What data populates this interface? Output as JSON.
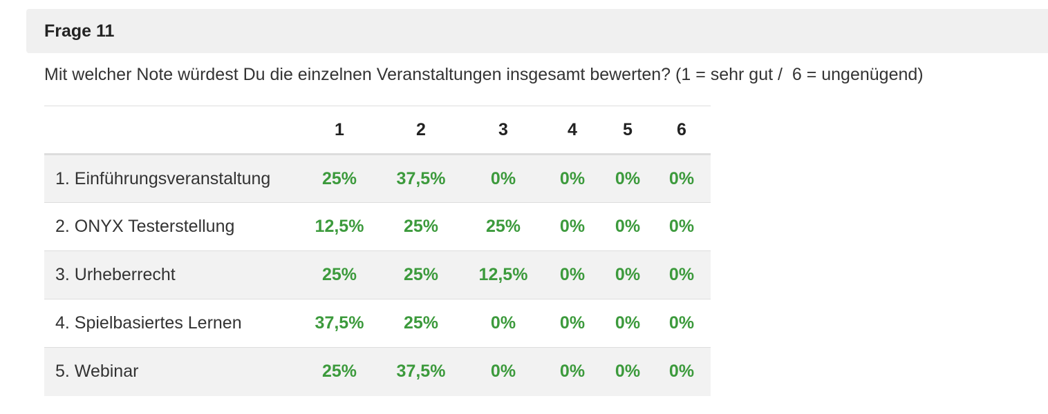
{
  "header": {
    "title": "Frage 11"
  },
  "question": {
    "text": "Mit welcher Note würdest Du die einzelnen Veranstaltungen insgesamt bewerten? (1 = sehr gut /  6 = ungenügend)"
  },
  "table": {
    "columns": [
      "",
      "1",
      "2",
      "3",
      "4",
      "5",
      "6"
    ],
    "rows": [
      {
        "label": "1. Einführungsveranstaltung",
        "values": [
          "25%",
          "37,5%",
          "0%",
          "0%",
          "0%",
          "0%"
        ]
      },
      {
        "label": "2. ONYX Testerstellung",
        "values": [
          "12,5%",
          "25%",
          "25%",
          "0%",
          "0%",
          "0%"
        ]
      },
      {
        "label": "3. Urheberrecht",
        "values": [
          "25%",
          "25%",
          "12,5%",
          "0%",
          "0%",
          "0%"
        ]
      },
      {
        "label": "4. Spielbasiertes Lernen",
        "values": [
          "37,5%",
          "25%",
          "0%",
          "0%",
          "0%",
          "0%"
        ]
      },
      {
        "label": "5. Webinar",
        "values": [
          "25%",
          "37,5%",
          "0%",
          "0%",
          "0%",
          "0%"
        ]
      }
    ]
  },
  "colors": {
    "header_bg": "#f0f0f0",
    "value_green": "#3c9a3c",
    "stripe": "#f2f2f2"
  }
}
